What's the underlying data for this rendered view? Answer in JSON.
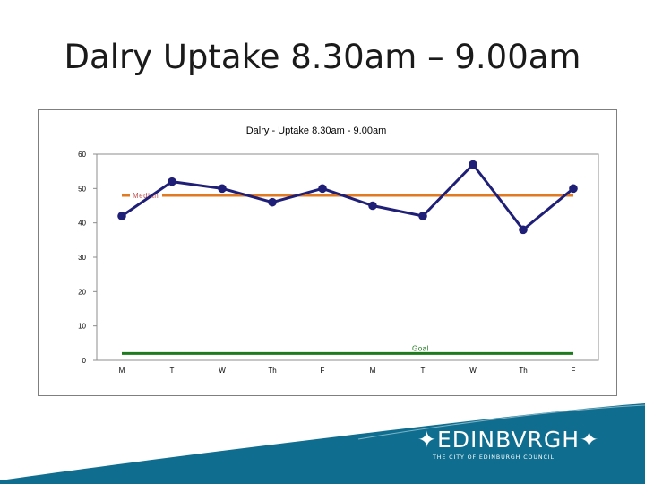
{
  "slide": {
    "title": "Dalry Uptake 8.30am – 9.00am"
  },
  "chart_data": {
    "type": "line",
    "title": "Dalry - Uptake 8.30am - 9.00am",
    "xlabel": "",
    "ylabel": "",
    "categories": [
      "M",
      "T",
      "W",
      "Th",
      "F",
      "M",
      "T",
      "W",
      "Th",
      "F"
    ],
    "ylim": [
      0,
      60
    ],
    "yticks": [
      0,
      10,
      20,
      30,
      40,
      50,
      60
    ],
    "grid": false,
    "series": [
      {
        "name": "",
        "values": [
          42,
          52,
          50,
          46,
          50,
          45,
          42,
          57,
          38,
          50
        ],
        "color": "#1f1f78"
      }
    ],
    "reference_lines": [
      {
        "label": "Median",
        "value": 48,
        "color": "#e07b24"
      },
      {
        "label": "Goal",
        "value": 2,
        "color": "#1e7a1e"
      }
    ]
  },
  "branding": {
    "logo_text": "EDINBVRGH",
    "logo_subtext": "THE CITY OF EDINBURGH COUNCIL",
    "color": "#0f6e8f"
  }
}
